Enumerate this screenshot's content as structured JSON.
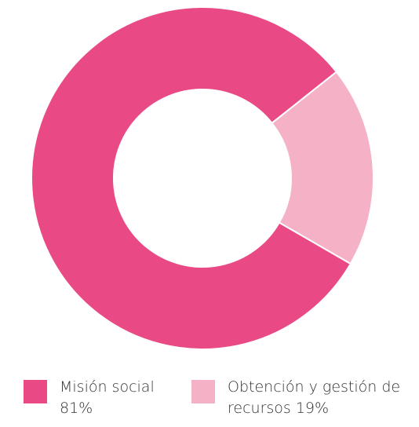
{
  "chart_data": {
    "type": "pie",
    "donut": true,
    "categories": [
      "Misión social",
      "Obtención y gestión de recursos"
    ],
    "values": [
      81,
      19
    ],
    "unit": "%",
    "colors": [
      "#e94a86",
      "#f5b1c6"
    ],
    "legend_position": "bottom",
    "legend": [
      {
        "label": "Misión social 81%",
        "color": "#e94a86"
      },
      {
        "label": "Obtención y gestión de recursos 19%",
        "color": "#f5b1c6"
      }
    ]
  }
}
